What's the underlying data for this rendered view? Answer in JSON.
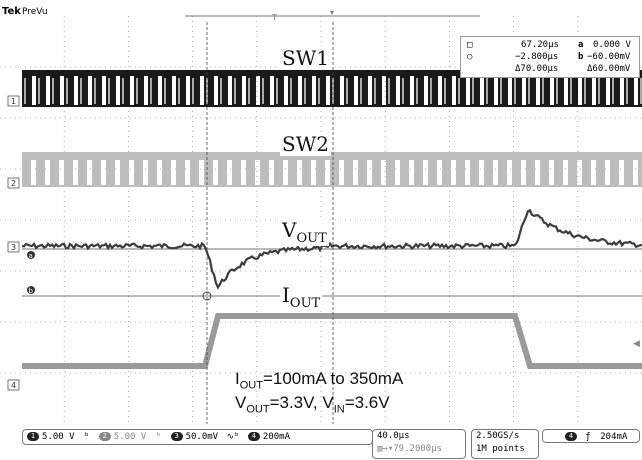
{
  "header": {
    "brand": "Tek",
    "mode": "PreVu"
  },
  "traces": {
    "sw1": {
      "label": "SW1",
      "marker": "1"
    },
    "sw2": {
      "label": "SW2",
      "marker": "2"
    },
    "vout": {
      "label_main": "V",
      "label_sub": "OUT",
      "marker": "3"
    },
    "iout": {
      "label_main": "I",
      "label_sub": "OUT",
      "marker": "4"
    }
  },
  "cursor_readout": {
    "t1": "67.20µs",
    "t2": "−2.800µs",
    "dt": "Δ70.00µs",
    "v1": "0.000 V",
    "v2": "−60.00mV",
    "dv": "Δ60.00mV",
    "a_sym": "a",
    "b_sym": "b"
  },
  "notes": {
    "line1_prefix": "I",
    "line1_sub": "OUT",
    "line1_rest": "=100mA to 350mA",
    "line2_a": "V",
    "line2_a_sub": "OUT",
    "line2_mid": "=3.3V, V",
    "line2_b_sub": "IN",
    "line2_rest": "=3.6V"
  },
  "status": {
    "ch1": "1",
    "ch1_scale": "5.00 V",
    "ch2": "2",
    "ch2_scale": "5.00 V",
    "ch3": "3",
    "ch3_scale": "50.0mV",
    "ch4": "4",
    "ch4_scale": "200mA",
    "timebase": "40.0µs",
    "trigger_pos": "79.2000µs",
    "sample_rate": "2.50GS/s",
    "record": "1M points",
    "trig_ch": "4",
    "trig_level": "204mA"
  },
  "colors": {
    "sw1": "#1a1a1a",
    "sw2": "#bdbdbd",
    "vout": "#3c3c3c",
    "iout": "#9a9a9a",
    "grid": "#9a9a9a"
  }
}
